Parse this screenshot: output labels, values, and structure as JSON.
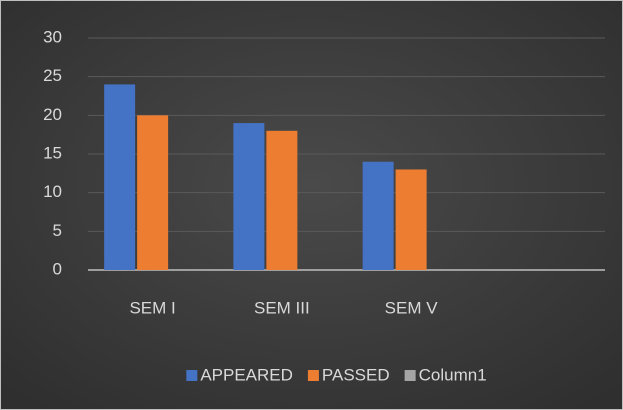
{
  "chart_data": {
    "type": "bar",
    "categories": [
      "SEM I",
      "SEM III",
      "SEM V",
      null
    ],
    "series": [
      {
        "name": "APPEARED",
        "color": "#4472c4",
        "values": [
          24,
          19,
          14,
          null
        ]
      },
      {
        "name": "PASSED",
        "color": "#ed7d31",
        "values": [
          20,
          18,
          13,
          null
        ]
      },
      {
        "name": "Column1",
        "color": "#a5a5a5",
        "values": [
          null,
          null,
          null,
          null
        ]
      }
    ],
    "ylim": [
      0,
      30
    ],
    "yticks": [
      0,
      5,
      10,
      15,
      20,
      25,
      30
    ],
    "grid": true,
    "legend": "bottom"
  }
}
